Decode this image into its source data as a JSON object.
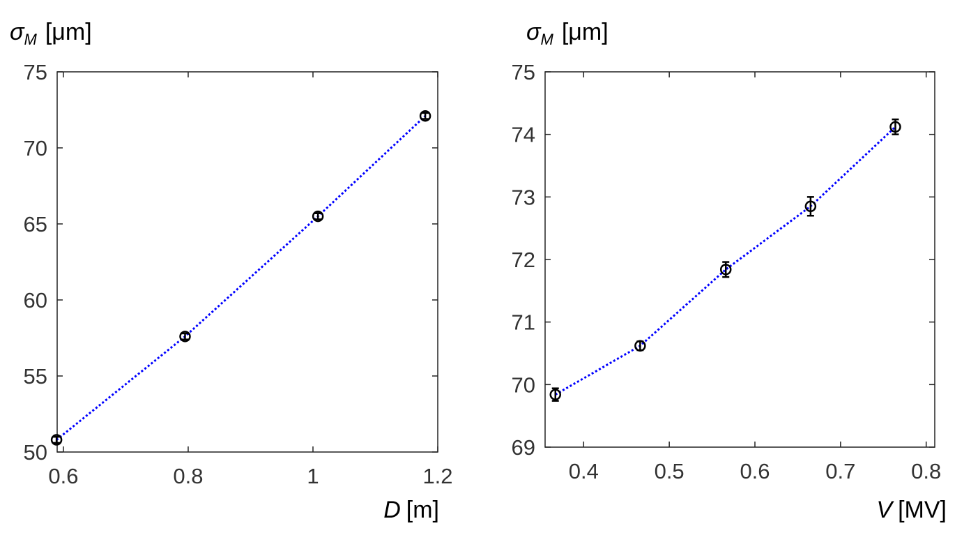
{
  "chart_data": [
    {
      "type": "line",
      "ylabel": {
        "symbol": "σ",
        "subscript": "M",
        "unit": "[μm]"
      },
      "xlabel": {
        "symbol": "D",
        "unit": "[m]"
      },
      "x": [
        0.589,
        0.795,
        1.008,
        1.18
      ],
      "values": [
        50.8,
        57.6,
        65.5,
        72.1
      ],
      "errors": [
        0.2,
        0.2,
        0.2,
        0.2
      ],
      "color": "#0000ff",
      "marker_color": "#000000",
      "line_style": "dotted",
      "xlim": [
        0.59,
        1.2
      ],
      "xticks": [
        0.6,
        0.8,
        1,
        1.2
      ],
      "ylim": [
        50,
        75
      ],
      "yticks": [
        50,
        55,
        60,
        65,
        70,
        75
      ]
    },
    {
      "type": "line",
      "ylabel": {
        "symbol": "σ",
        "subscript": "M",
        "unit": "[μm]"
      },
      "xlabel": {
        "symbol": "V",
        "unit": "[MV]"
      },
      "x": [
        0.367,
        0.466,
        0.566,
        0.665,
        0.764
      ],
      "values": [
        69.84,
        70.62,
        71.84,
        72.85,
        74.12
      ],
      "errors": [
        0.1,
        0.07,
        0.12,
        0.15,
        0.12
      ],
      "color": "#0000ff",
      "marker_color": "#000000",
      "line_style": "dotted",
      "xlim": [
        0.355,
        0.81
      ],
      "xticks": [
        0.4,
        0.5,
        0.6,
        0.7,
        0.8
      ],
      "ylim": [
        69,
        75
      ],
      "yticks": [
        69,
        70,
        71,
        72,
        73,
        74,
        75
      ]
    }
  ]
}
